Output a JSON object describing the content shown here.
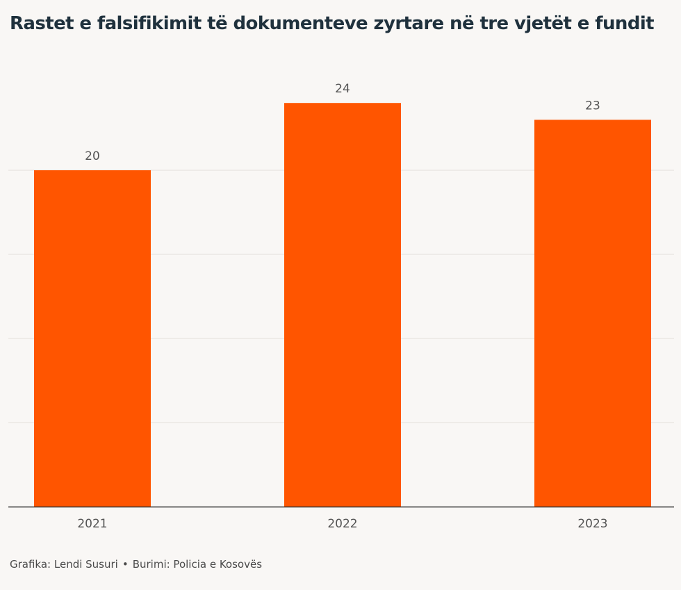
{
  "title": "Rastet e falsifikimit të dokumenteve zyrtare në tre vjetët e fundit",
  "footer": {
    "credit": "Grafika: Lendi Susuri",
    "separator": "•",
    "source": "Burimi: Policia e Kosovës"
  },
  "colors": {
    "bar": "#ff5500",
    "background": "#f9f7f5",
    "grid": "#e2dfdc",
    "axis": "#333333",
    "title": "#1f313d",
    "label": "#555555"
  },
  "chart_data": {
    "type": "bar",
    "title": "Rastet e falsifikimit të dokumenteve zyrtare në tre vjetët e fundit",
    "categories": [
      "2021",
      "2022",
      "2023"
    ],
    "values": [
      20,
      24,
      23
    ],
    "data_labels": [
      "20",
      "24",
      "23"
    ],
    "xlabel": "",
    "ylabel": "",
    "ylim": [
      0,
      24
    ],
    "gridlines": [
      5,
      10,
      15,
      20
    ],
    "grid": true,
    "legend": "none"
  }
}
